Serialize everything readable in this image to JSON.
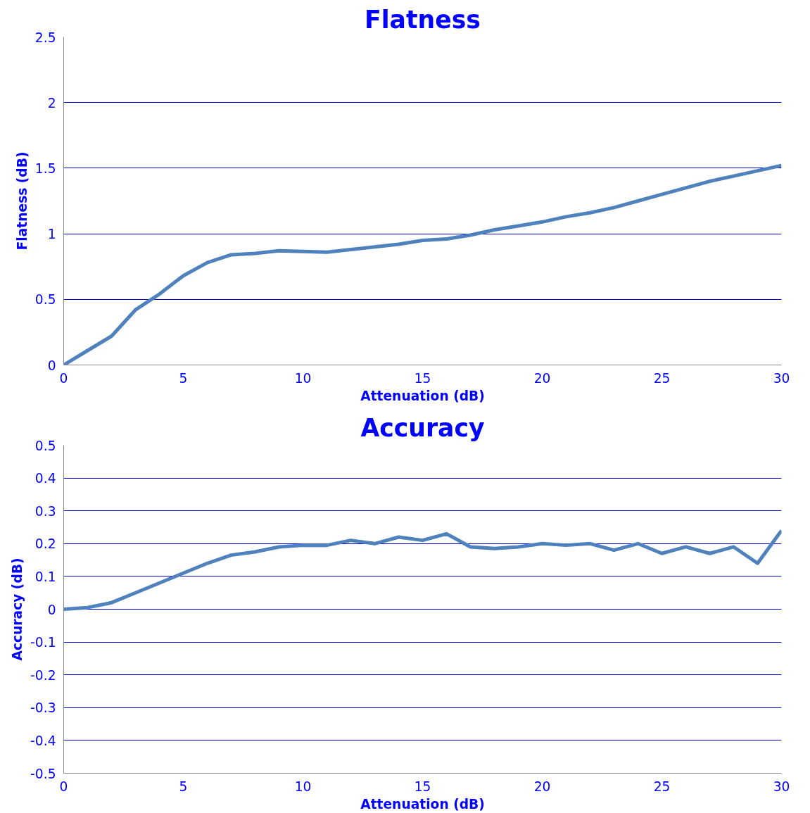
{
  "chart_data": [
    {
      "type": "line",
      "title": "Flatness",
      "xlabel": "Attenuation (dB)",
      "ylabel": "Flatness (dB)",
      "x": [
        0,
        1,
        2,
        3,
        4,
        5,
        6,
        7,
        8,
        9,
        10,
        11,
        12,
        13,
        14,
        15,
        16,
        17,
        18,
        19,
        20,
        21,
        22,
        23,
        24,
        25,
        26,
        27,
        28,
        29,
        30
      ],
      "series": [
        {
          "color": "#4f81bd",
          "values": [
            0,
            0.11,
            0.22,
            0.42,
            0.54,
            0.68,
            0.78,
            0.84,
            0.85,
            0.87,
            0.865,
            0.86,
            0.88,
            0.9,
            0.92,
            0.95,
            0.96,
            0.99,
            1.03,
            1.06,
            1.09,
            1.13,
            1.16,
            1.2,
            1.25,
            1.3,
            1.35,
            1.4,
            1.44,
            1.48,
            1.52
          ]
        }
      ],
      "xlim": [
        0,
        30
      ],
      "xticks": [
        0,
        5,
        10,
        15,
        20,
        25,
        30
      ],
      "ylim": [
        0,
        2.5
      ],
      "yticks": [
        0,
        0.5,
        1,
        1.5,
        2,
        2.5
      ],
      "grid": "y",
      "marker": "none",
      "line_style": "solid"
    },
    {
      "type": "line",
      "title": "Accuracy",
      "xlabel": "Attenuation (dB)",
      "ylabel": "Accuracy (dB)",
      "x": [
        0,
        1,
        2,
        3,
        4,
        5,
        6,
        7,
        8,
        9,
        10,
        11,
        12,
        13,
        14,
        15,
        16,
        17,
        18,
        19,
        20,
        21,
        22,
        23,
        24,
        25,
        26,
        27,
        28,
        29,
        30
      ],
      "series": [
        {
          "color": "#4f81bd",
          "values": [
            0,
            0.005,
            0.02,
            0.05,
            0.08,
            0.11,
            0.14,
            0.165,
            0.175,
            0.19,
            0.195,
            0.195,
            0.21,
            0.2,
            0.22,
            0.21,
            0.23,
            0.19,
            0.185,
            0.19,
            0.2,
            0.195,
            0.2,
            0.18,
            0.2,
            0.17,
            0.19,
            0.17,
            0.19,
            0.14,
            0.24
          ]
        }
      ],
      "xlim": [
        0,
        30
      ],
      "xticks": [
        0,
        5,
        10,
        15,
        20,
        25,
        30
      ],
      "ylim": [
        -0.5,
        0.5
      ],
      "yticks": [
        -0.5,
        -0.4,
        -0.3,
        -0.2,
        -0.1,
        0,
        0.1,
        0.2,
        0.3,
        0.4,
        0.5
      ],
      "grid": "y",
      "marker": "none",
      "line_style": "solid"
    }
  ]
}
